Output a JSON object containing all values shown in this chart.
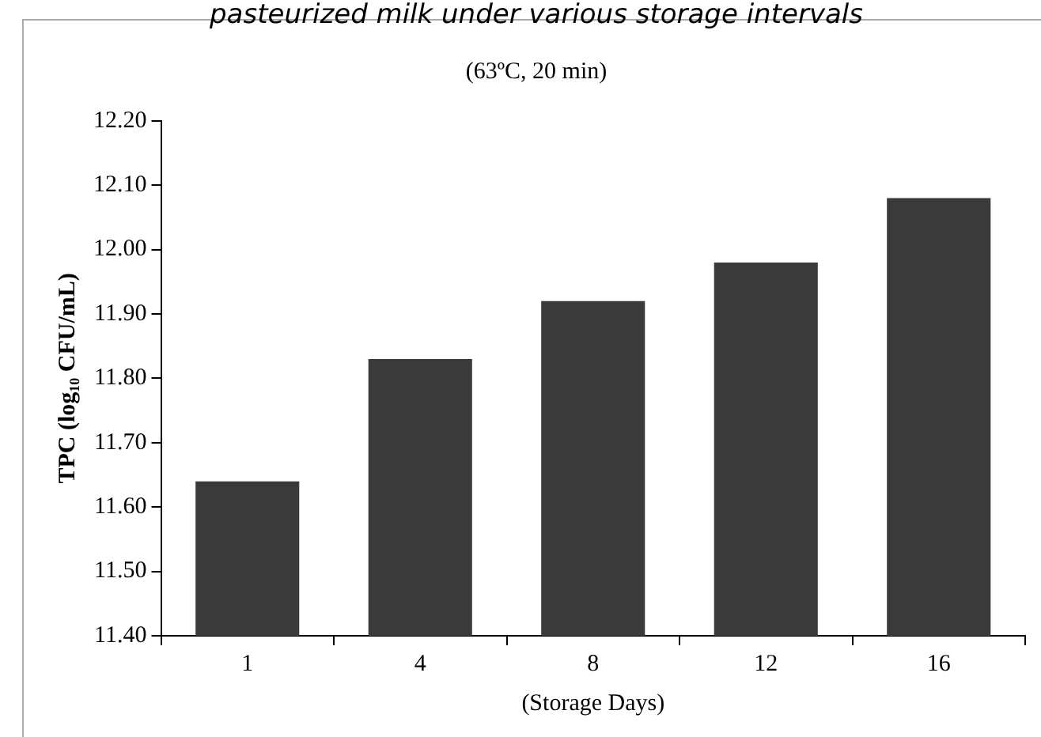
{
  "chart_data": {
    "type": "bar",
    "title": "pasteurized milk under various storage intervals",
    "subtitle": "(63ºC, 20 min)",
    "xlabel": "(Storage Days)",
    "ylabel": "TPC (log₁₀ CFU/mL)",
    "categories": [
      "1",
      "4",
      "8",
      "12",
      "16"
    ],
    "values": [
      11.64,
      11.83,
      11.92,
      11.98,
      12.08
    ],
    "color": "#3a3a3a",
    "ylim": [
      11.4,
      12.2
    ],
    "yticks": [
      {
        "value": 11.4,
        "label": "11.40"
      },
      {
        "value": 11.5,
        "label": "11.50"
      },
      {
        "value": 11.6,
        "label": "11.60"
      },
      {
        "value": 11.7,
        "label": "11.70"
      },
      {
        "value": 11.8,
        "label": "11.80"
      },
      {
        "value": 11.9,
        "label": "11.90"
      },
      {
        "value": 12.0,
        "label": "12.00"
      },
      {
        "value": 12.1,
        "label": "12.10"
      },
      {
        "value": 12.2,
        "label": "12.20"
      }
    ],
    "grid": false,
    "legend": false
  }
}
